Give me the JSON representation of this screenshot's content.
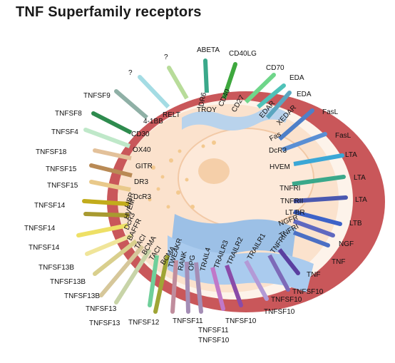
{
  "title": "TNF Superfamily receptors",
  "colors": {
    "outer_ring": "#c9575a",
    "inner_body": "#fbe2cd",
    "nucleus": "#fde9d9",
    "membrane_blue": "#9cc0e6"
  },
  "ligands": [
    {
      "text": "TNFSF9",
      "color": "#8fb0a6"
    },
    {
      "text": "TNFSF8",
      "color": "#2e8b4e"
    },
    {
      "text": "TNFSF4",
      "color": "#bfe8c9"
    },
    {
      "text": "TNFSF18",
      "color": "#e3c19a"
    },
    {
      "text": "TNFSF15",
      "color": "#b98a55"
    },
    {
      "text": "TNFSF15",
      "color": "#e9c98a"
    },
    {
      "text": "TNFSF14",
      "color": "#c2ac1c"
    },
    {
      "text": "TNFSF14",
      "color": "#a89a30"
    },
    {
      "text": "TNFSF14",
      "color": "#eee066"
    },
    {
      "text": "TNFSF13B",
      "color": "#f0e59a"
    },
    {
      "text": "TNFSF13B",
      "color": "#d9cf8d"
    },
    {
      "text": "TNFSF13B",
      "color": "#d6c79a"
    },
    {
      "text": "TNFSF13",
      "color": "#c8d4a8"
    },
    {
      "text": "TNFSF13",
      "color": "#6fcf9a"
    },
    {
      "text": "TNFSF12",
      "color": "#9fa535"
    },
    {
      "text": "TNFSF11",
      "color": "#c08d9d"
    },
    {
      "text": "TNFSF10",
      "color": "#a48db5"
    },
    {
      "text": "TNFSF11",
      "color": "#a48db5"
    },
    {
      "text": "TNFSF10",
      "color": "#c078c8"
    },
    {
      "text": "TNFSF10",
      "color": "#8a4ba8"
    },
    {
      "text": "TNFSF10",
      "color": "#b39ad6"
    },
    {
      "text": "TNFSF10",
      "color": "#7d6ab8"
    },
    {
      "text": "TNF",
      "color": "#5a3fa0"
    },
    {
      "text": "NGF",
      "color": "#4b6fc4"
    },
    {
      "text": "TNF",
      "color": "#5f68c0"
    },
    {
      "text": "LTB",
      "color": "#3d62c8"
    },
    {
      "text": "LTA",
      "color": "#4a58b0"
    },
    {
      "text": "LTA",
      "color": "#3aa88a"
    },
    {
      "text": "LTA",
      "color": "#3ba7d6"
    },
    {
      "text": "FasL",
      "color": "#4e7fc8"
    },
    {
      "text": "FasL",
      "color": "#5a8fd4"
    },
    {
      "text": "EDA",
      "color": "#5aa6c0"
    },
    {
      "text": "EDA",
      "color": "#4fc2b8"
    },
    {
      "text": "CD70",
      "color": "#6fd68a"
    },
    {
      "text": "CD40LG",
      "color": "#3ea83e"
    },
    {
      "text": "ABETA",
      "color": "#3aa88a"
    },
    {
      "text": "?",
      "color": "#b8dc9a"
    },
    {
      "text": "?",
      "color": "#a4dce4"
    }
  ],
  "receptors": [
    "4-1BB",
    "CD30",
    "OX40",
    "GITR",
    "DR3",
    "DcR3",
    "LIBR",
    "HVEM",
    "DcR3",
    "BAFFR",
    "TACI",
    "BCMA",
    "TACI",
    "BCMA",
    "TWEAKR",
    "RANK",
    "OPG",
    "TRAIL4",
    "TRAILR3",
    "TRAILR2",
    "TRAILR1",
    "TNFRII",
    "TNFRI",
    "NGFR",
    "LT-BR",
    "TNFRII",
    "TNFRI",
    "HVEM",
    "DcR3",
    "Fas",
    "XEDAR",
    "EDAR",
    "CD27",
    "CD40",
    "DR6",
    "TROY",
    "RELT"
  ]
}
